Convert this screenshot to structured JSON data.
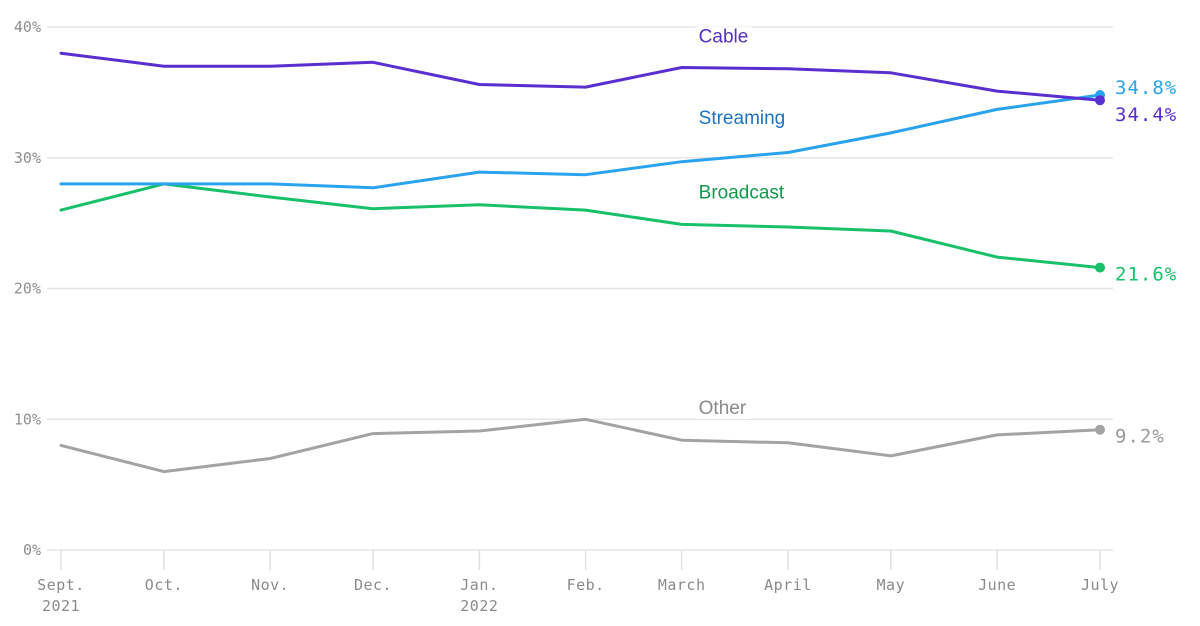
{
  "chart_data": {
    "type": "line",
    "title": "",
    "xlabel": "",
    "ylabel": "",
    "ylim": [
      0,
      40
    ],
    "yticks": [
      0,
      10,
      20,
      30,
      40
    ],
    "ytick_labels": [
      "0%",
      "10%",
      "20%",
      "30%",
      "40%"
    ],
    "grid": true,
    "legend": "inline labels",
    "x": [
      "2021-09-01",
      "2021-10-01",
      "2021-11-01",
      "2021-12-01",
      "2022-01-01",
      "2022-02-01",
      "2022-03-01",
      "2022-04-01",
      "2022-05-01",
      "2022-06-01",
      "2022-07-01"
    ],
    "xtick_labels": [
      [
        "Sept.",
        "2021"
      ],
      [
        "Oct.",
        ""
      ],
      [
        "Nov.",
        ""
      ],
      [
        "Dec.",
        ""
      ],
      [
        "Jan.",
        "2022"
      ],
      [
        "Feb.",
        ""
      ],
      [
        "March",
        ""
      ],
      [
        "April",
        ""
      ],
      [
        "May",
        ""
      ],
      [
        "June",
        ""
      ],
      [
        "July",
        ""
      ]
    ],
    "series": [
      {
        "name": "Cable",
        "color": "#5a2fd0",
        "label_color": "#5230c0",
        "values": [
          38.0,
          37.0,
          37.0,
          37.3,
          35.6,
          35.4,
          36.9,
          36.8,
          36.5,
          35.1,
          34.4
        ],
        "end_label": "34.4%",
        "label_at": "2022-03-01",
        "label_value": 38.8
      },
      {
        "name": "Streaming",
        "color": "#2aa3ee",
        "label_color": "#1d73c0",
        "values": [
          28.0,
          28.0,
          28.0,
          27.7,
          28.9,
          28.7,
          29.7,
          30.4,
          31.9,
          33.7,
          34.8
        ],
        "end_label": "34.8%",
        "label_at": "2022-03-01",
        "label_value": 32.6
      },
      {
        "name": "Broadcast",
        "color": "#18c06a",
        "label_color": "#11994c",
        "values": [
          26.0,
          28.0,
          27.0,
          26.1,
          26.4,
          26.0,
          24.9,
          24.7,
          24.4,
          22.4,
          21.6
        ],
        "end_label": "21.6%",
        "label_at": "2022-03-01",
        "label_value": 26.9
      },
      {
        "name": "Other",
        "color": "#a3a3a3",
        "label_color": "#8a8a8a",
        "values": [
          8.0,
          6.0,
          7.0,
          8.9,
          9.1,
          10.0,
          8.4,
          8.2,
          7.2,
          8.8,
          9.2
        ],
        "end_label": "9.2%",
        "label_at": "2022-03-01",
        "label_value": 10.4
      }
    ]
  }
}
